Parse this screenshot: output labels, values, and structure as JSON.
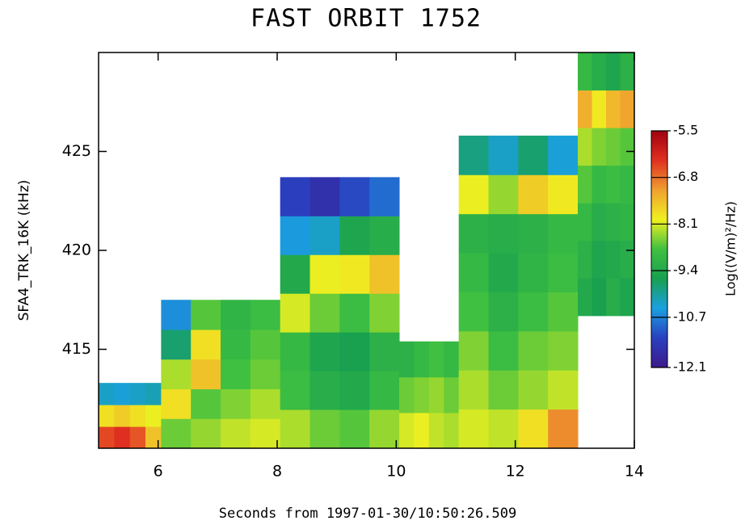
{
  "chart_data": {
    "type": "spectrogram",
    "title": "FAST ORBIT 1752",
    "x_label": "Seconds from 1997-01-30/10:50:26.509",
    "y_label": "SFA4_TRK_16K (kHz)",
    "colorbar_label": "Log((V/m)²/Hz)",
    "xlim": [
      5,
      14
    ],
    "xticks": [
      6,
      8,
      10,
      12,
      14
    ],
    "ylim": [
      410,
      430
    ],
    "yticks": [
      415,
      420,
      425
    ],
    "zlim": [
      -12.1,
      -5.5
    ],
    "zticks": [
      -5.5,
      -6.8,
      -8.1,
      -9.4,
      -10.7,
      -12.1
    ],
    "colormap": [
      "#3b1a8a",
      "#2a40c0",
      "#1aa0e0",
      "#18a050",
      "#40c040",
      "#f0f020",
      "#f0a030",
      "#e03020",
      "#a00010"
    ],
    "blocks": [
      {
        "t": [
          5,
          6.05
        ],
        "f": [
          410,
          413.3
        ],
        "z": [
          [
            -6.5,
            -6.3,
            -6.6,
            -7.5
          ],
          [
            -7.8,
            -7.6,
            -7.8,
            -8.0
          ],
          [
            -10.3,
            -10.4,
            -10.3,
            -10.2
          ]
        ]
      },
      {
        "t": [
          6.05,
          8.05
        ],
        "f": [
          410,
          417.5
        ],
        "z": [
          [
            -8.6,
            -8.4,
            -8.2,
            -8.1
          ],
          [
            -7.8,
            -8.7,
            -8.5,
            -8.3
          ],
          [
            -8.3,
            -7.5,
            -8.8,
            -8.6
          ],
          [
            -9.8,
            -7.8,
            -9.0,
            -8.7
          ],
          [
            -10.6,
            -8.7,
            -9.1,
            -8.9
          ]
        ]
      },
      {
        "t": [
          8.05,
          10.05
        ],
        "f": [
          410,
          423.7
        ],
        "z": [
          [
            -8.3,
            -8.6,
            -8.7,
            -8.4
          ],
          [
            -8.9,
            -9.3,
            -9.4,
            -9.0
          ],
          [
            -9.0,
            -9.5,
            -9.6,
            -9.2
          ],
          [
            -8.1,
            -8.6,
            -8.9,
            -8.5
          ],
          [
            -9.4,
            -8.0,
            -7.9,
            -7.5
          ],
          [
            -10.5,
            -10.3,
            -9.5,
            -9.3
          ],
          [
            -11.3,
            -11.6,
            -11.2,
            -10.9
          ]
        ]
      },
      {
        "t": [
          10.05,
          11.05
        ],
        "f": [
          410,
          415.4
        ],
        "z": [
          [
            -8.1,
            -8.0,
            -8.2,
            -8.3
          ],
          [
            -8.6,
            -8.5,
            -8.4,
            -8.6
          ],
          [
            -9.2,
            -9.0,
            -8.8,
            -9.0
          ]
        ]
      },
      {
        "t": [
          11.05,
          13.05
        ],
        "f": [
          410,
          425.8
        ],
        "z": [
          [
            -8.1,
            -8.2,
            -7.8,
            -7.0
          ],
          [
            -8.3,
            -8.6,
            -8.4,
            -8.2
          ],
          [
            -8.5,
            -8.9,
            -8.6,
            -8.5
          ],
          [
            -8.8,
            -9.2,
            -8.9,
            -8.7
          ],
          [
            -9.0,
            -9.4,
            -9.1,
            -8.9
          ],
          [
            -9.2,
            -9.3,
            -9.2,
            -9.0
          ],
          [
            -8.0,
            -8.4,
            -7.6,
            -7.9
          ],
          [
            -9.9,
            -10.3,
            -9.8,
            -10.4
          ]
        ]
      },
      {
        "t": [
          13.05,
          14
        ],
        "f": [
          416.7,
          430
        ],
        "z": [
          [
            -9.4,
            -9.6,
            -9.3,
            -9.5
          ],
          [
            -9.2,
            -9.5,
            -9.4,
            -9.3
          ],
          [
            -9.0,
            -9.3,
            -9.2,
            -9.1
          ],
          [
            -8.7,
            -9.0,
            -8.9,
            -9.0
          ],
          [
            -8.3,
            -8.5,
            -8.6,
            -8.7
          ],
          [
            -7.3,
            -7.9,
            -7.4,
            -7.2
          ],
          [
            -9.0,
            -9.3,
            -9.5,
            -9.2
          ]
        ]
      }
    ]
  }
}
